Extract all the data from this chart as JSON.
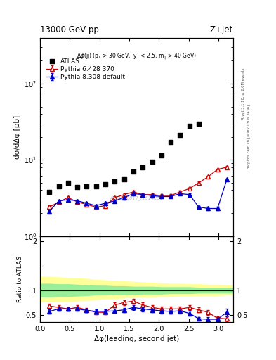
{
  "title_left": "13000 GeV pp",
  "title_right": "Z+Jet",
  "watermark": "ATLAS_2017_I1514251",
  "right_label_top": "Rivet 3.1.10, ≥ 2.6M events",
  "right_label_bottom": "mcplots.cern.ch [arXiv:1306.3436]",
  "ylabel_main": "dσ/dΔφ [pb]",
  "ylabel_ratio": "Ratio to ATLAS",
  "xlabel": "Δφ(leading, second jet)",
  "xlim": [
    0.0,
    3.25
  ],
  "ylim_main": [
    1.0,
    400.0
  ],
  "ylim_ratio": [
    0.35,
    2.1
  ],
  "atlas_x": [
    0.157,
    0.314,
    0.471,
    0.628,
    0.785,
    0.942,
    1.099,
    1.257,
    1.414,
    1.571,
    1.728,
    1.885,
    2.042,
    2.199,
    2.356,
    2.513,
    2.67
  ],
  "atlas_y": [
    3.8,
    4.5,
    5.0,
    4.4,
    4.5,
    4.5,
    4.8,
    5.2,
    5.5,
    7.0,
    8.0,
    9.5,
    11.5,
    17.0,
    21.0,
    28.0,
    30.0
  ],
  "pythia6_x": [
    0.157,
    0.314,
    0.471,
    0.628,
    0.785,
    0.942,
    1.099,
    1.257,
    1.414,
    1.571,
    1.728,
    1.885,
    2.042,
    2.199,
    2.356,
    2.513,
    2.67,
    2.827,
    2.985,
    3.142
  ],
  "pythia6_y": [
    2.4,
    2.8,
    3.2,
    2.8,
    2.6,
    2.4,
    2.5,
    3.2,
    3.5,
    3.8,
    3.5,
    3.5,
    3.4,
    3.4,
    3.8,
    4.2,
    5.0,
    6.0,
    7.5,
    8.0
  ],
  "pythia6_yerr": [
    0.12,
    0.12,
    0.12,
    0.1,
    0.1,
    0.1,
    0.1,
    0.12,
    0.12,
    0.13,
    0.12,
    0.12,
    0.12,
    0.12,
    0.13,
    0.15,
    0.18,
    0.2,
    0.22,
    0.25
  ],
  "pythia8_x": [
    0.157,
    0.314,
    0.471,
    0.628,
    0.785,
    0.942,
    1.099,
    1.257,
    1.414,
    1.571,
    1.728,
    1.885,
    2.042,
    2.199,
    2.356,
    2.513,
    2.67,
    2.827,
    2.985,
    3.142
  ],
  "pythia8_y": [
    2.1,
    2.9,
    3.0,
    2.9,
    2.7,
    2.5,
    2.7,
    2.9,
    3.2,
    3.6,
    3.5,
    3.4,
    3.3,
    3.3,
    3.6,
    3.5,
    2.4,
    2.3,
    2.3,
    5.5
  ],
  "pythia8_yerr": [
    0.1,
    0.1,
    0.1,
    0.1,
    0.1,
    0.1,
    0.1,
    0.1,
    0.1,
    0.12,
    0.12,
    0.12,
    0.12,
    0.12,
    0.12,
    0.12,
    0.1,
    0.1,
    0.1,
    0.22
  ],
  "ratio6_x": [
    0.157,
    0.314,
    0.471,
    0.628,
    0.785,
    0.942,
    1.099,
    1.257,
    1.414,
    1.571,
    1.728,
    1.885,
    2.042,
    2.199,
    2.356,
    2.513,
    2.67,
    2.827,
    2.985,
    3.142
  ],
  "ratio6_y": [
    0.68,
    0.65,
    0.62,
    0.65,
    0.6,
    0.55,
    0.55,
    0.7,
    0.75,
    0.78,
    0.7,
    0.65,
    0.62,
    0.62,
    0.62,
    0.65,
    0.6,
    0.55,
    0.43,
    0.42
  ],
  "ratio6_yerr": [
    0.04,
    0.04,
    0.04,
    0.04,
    0.04,
    0.04,
    0.04,
    0.05,
    0.05,
    0.05,
    0.05,
    0.05,
    0.05,
    0.05,
    0.05,
    0.05,
    0.05,
    0.05,
    0.04,
    0.05
  ],
  "ratio8_x": [
    0.157,
    0.314,
    0.471,
    0.628,
    0.785,
    0.942,
    1.099,
    1.257,
    1.414,
    1.571,
    1.728,
    1.885,
    2.042,
    2.199,
    2.356,
    2.513,
    2.67,
    2.827,
    2.985,
    3.142
  ],
  "ratio8_y": [
    0.57,
    0.62,
    0.62,
    0.62,
    0.59,
    0.57,
    0.57,
    0.58,
    0.6,
    0.65,
    0.62,
    0.6,
    0.58,
    0.57,
    0.58,
    0.53,
    0.42,
    0.41,
    0.41,
    0.55
  ],
  "ratio8_yerr": [
    0.04,
    0.04,
    0.04,
    0.04,
    0.04,
    0.04,
    0.04,
    0.04,
    0.04,
    0.05,
    0.05,
    0.05,
    0.05,
    0.05,
    0.05,
    0.05,
    0.04,
    0.04,
    0.04,
    0.08
  ],
  "band_x": [
    0.0,
    0.157,
    0.314,
    0.471,
    0.628,
    0.785,
    0.942,
    1.099,
    1.257,
    1.414,
    1.571,
    1.728,
    1.885,
    2.042,
    2.199,
    2.356,
    2.513,
    2.67,
    2.827,
    2.985,
    3.142,
    3.25
  ],
  "band_yellow_upper": [
    1.27,
    1.27,
    1.26,
    1.25,
    1.24,
    1.23,
    1.21,
    1.2,
    1.19,
    1.18,
    1.17,
    1.16,
    1.15,
    1.14,
    1.13,
    1.13,
    1.12,
    1.12,
    1.11,
    1.11,
    1.1,
    1.1
  ],
  "band_yellow_lower": [
    0.77,
    0.77,
    0.78,
    0.78,
    0.79,
    0.8,
    0.82,
    0.83,
    0.84,
    0.85,
    0.86,
    0.87,
    0.87,
    0.88,
    0.88,
    0.89,
    0.89,
    0.9,
    0.9,
    0.9,
    0.91,
    0.91
  ],
  "band_green_upper": [
    1.13,
    1.13,
    1.12,
    1.12,
    1.11,
    1.1,
    1.09,
    1.09,
    1.08,
    1.08,
    1.07,
    1.07,
    1.07,
    1.06,
    1.06,
    1.06,
    1.06,
    1.05,
    1.05,
    1.05,
    1.05,
    1.05
  ],
  "band_green_lower": [
    0.87,
    0.87,
    0.88,
    0.88,
    0.89,
    0.9,
    0.91,
    0.91,
    0.92,
    0.92,
    0.92,
    0.93,
    0.93,
    0.93,
    0.94,
    0.94,
    0.94,
    0.95,
    0.95,
    0.95,
    0.95,
    0.95
  ],
  "color_atlas": "#000000",
  "color_p6": "#cc0000",
  "color_p8": "#0000cc",
  "color_yellow": "#ffff99",
  "color_green": "#99ee99"
}
